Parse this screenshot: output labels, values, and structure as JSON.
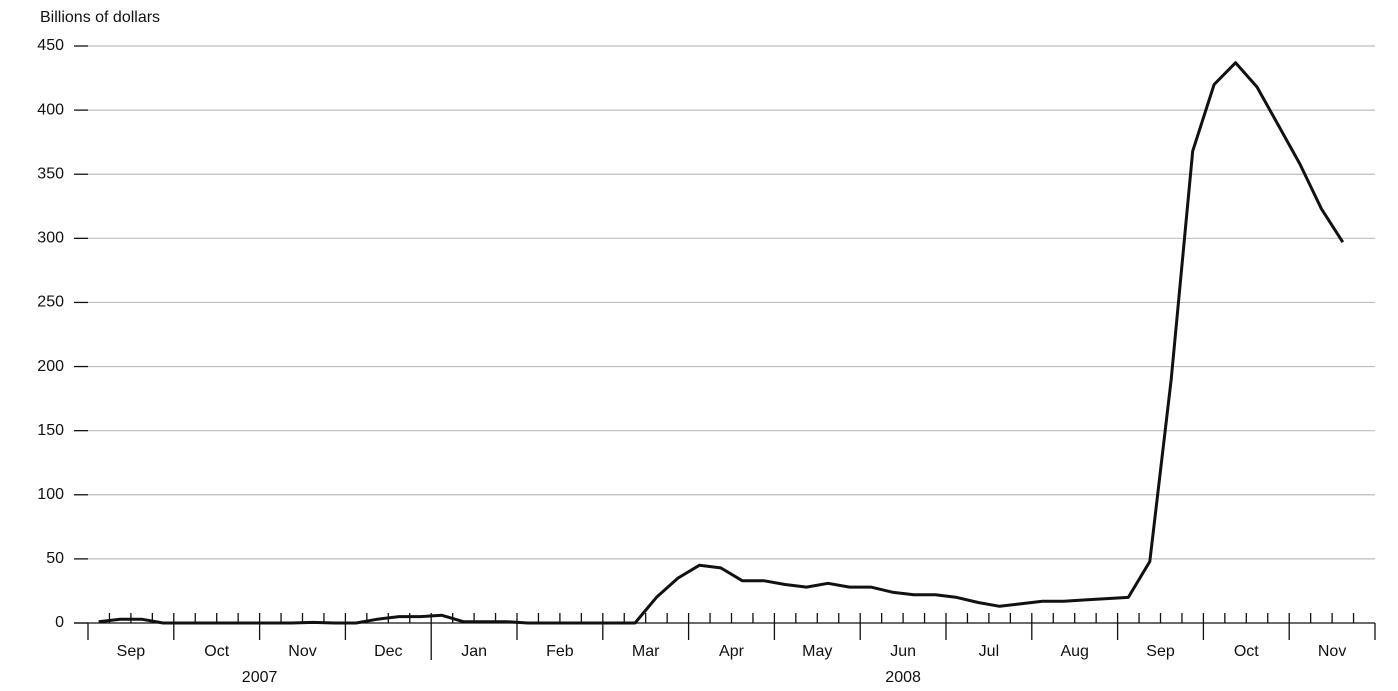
{
  "chart_data": {
    "type": "line",
    "y_label": "Billions of dollars",
    "color": "#111111",
    "ylim": [
      0,
      450
    ],
    "yticks": [
      0,
      50,
      100,
      150,
      200,
      250,
      300,
      350,
      400,
      450
    ],
    "grid": true,
    "years": [
      {
        "label": "2007",
        "months": [
          {
            "label": "Sep",
            "values": [
              1,
              3,
              3,
              0
            ]
          },
          {
            "label": "Oct",
            "values": [
              0,
              0,
              0,
              0
            ]
          },
          {
            "label": "Nov",
            "values": [
              0,
              0,
              0.5,
              0
            ]
          },
          {
            "label": "Dec",
            "values": [
              0,
              3,
              5,
              5
            ]
          }
        ]
      },
      {
        "label": "2008",
        "months": [
          {
            "label": "Jan",
            "values": [
              6,
              1,
              1,
              1
            ]
          },
          {
            "label": "Feb",
            "values": [
              0,
              0,
              0,
              0
            ]
          },
          {
            "label": "Mar",
            "values": [
              0,
              0,
              20,
              35
            ]
          },
          {
            "label": "Apr",
            "values": [
              45,
              43,
              33,
              33
            ]
          },
          {
            "label": "May",
            "values": [
              30,
              28,
              31,
              28
            ]
          },
          {
            "label": "Jun",
            "values": [
              28,
              24,
              22,
              22
            ]
          },
          {
            "label": "Jul",
            "values": [
              20,
              16,
              13,
              15
            ]
          },
          {
            "label": "Aug",
            "values": [
              17,
              17,
              18,
              19
            ]
          },
          {
            "label": "Sep",
            "values": [
              20,
              48,
              190,
              368
            ]
          },
          {
            "label": "Oct",
            "values": [
              420,
              437,
              418,
              388
            ]
          },
          {
            "label": "Nov",
            "values": [
              358,
              323,
              297
            ]
          }
        ]
      }
    ]
  }
}
